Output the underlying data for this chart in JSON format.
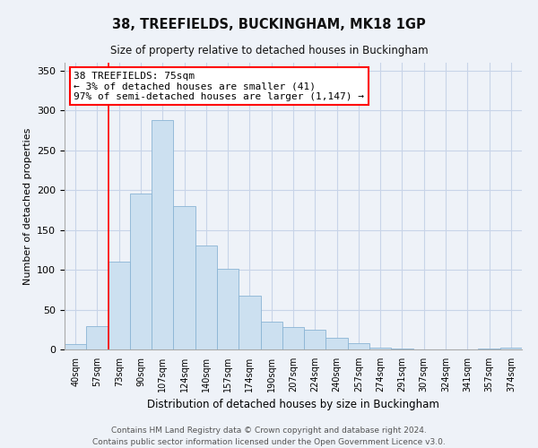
{
  "title": "38, TREEFIELDS, BUCKINGHAM, MK18 1GP",
  "subtitle": "Size of property relative to detached houses in Buckingham",
  "xlabel": "Distribution of detached houses by size in Buckingham",
  "ylabel": "Number of detached properties",
  "bar_color": "#cce0f0",
  "bar_edge_color": "#8ab4d4",
  "background_color": "#eef2f8",
  "plot_bg_color": "#eef2f8",
  "grid_color": "#c8d4e8",
  "categories": [
    "40sqm",
    "57sqm",
    "73sqm",
    "90sqm",
    "107sqm",
    "124sqm",
    "140sqm",
    "157sqm",
    "174sqm",
    "190sqm",
    "207sqm",
    "224sqm",
    "240sqm",
    "257sqm",
    "274sqm",
    "291sqm",
    "307sqm",
    "324sqm",
    "341sqm",
    "357sqm",
    "374sqm"
  ],
  "values": [
    7,
    29,
    110,
    196,
    288,
    180,
    130,
    101,
    68,
    35,
    28,
    25,
    15,
    8,
    2,
    1,
    0,
    0,
    0,
    1,
    2
  ],
  "ylim": [
    0,
    360
  ],
  "yticks": [
    0,
    50,
    100,
    150,
    200,
    250,
    300,
    350
  ],
  "ann_line1": "38 TREEFIELDS: 75sqm",
  "ann_line2": "← 3% of detached houses are smaller (41)",
  "ann_line3": "97% of semi-detached houses are larger (1,147) →",
  "red_line_x": 2,
  "footer_line1": "Contains HM Land Registry data © Crown copyright and database right 2024.",
  "footer_line2": "Contains public sector information licensed under the Open Government Licence v3.0."
}
